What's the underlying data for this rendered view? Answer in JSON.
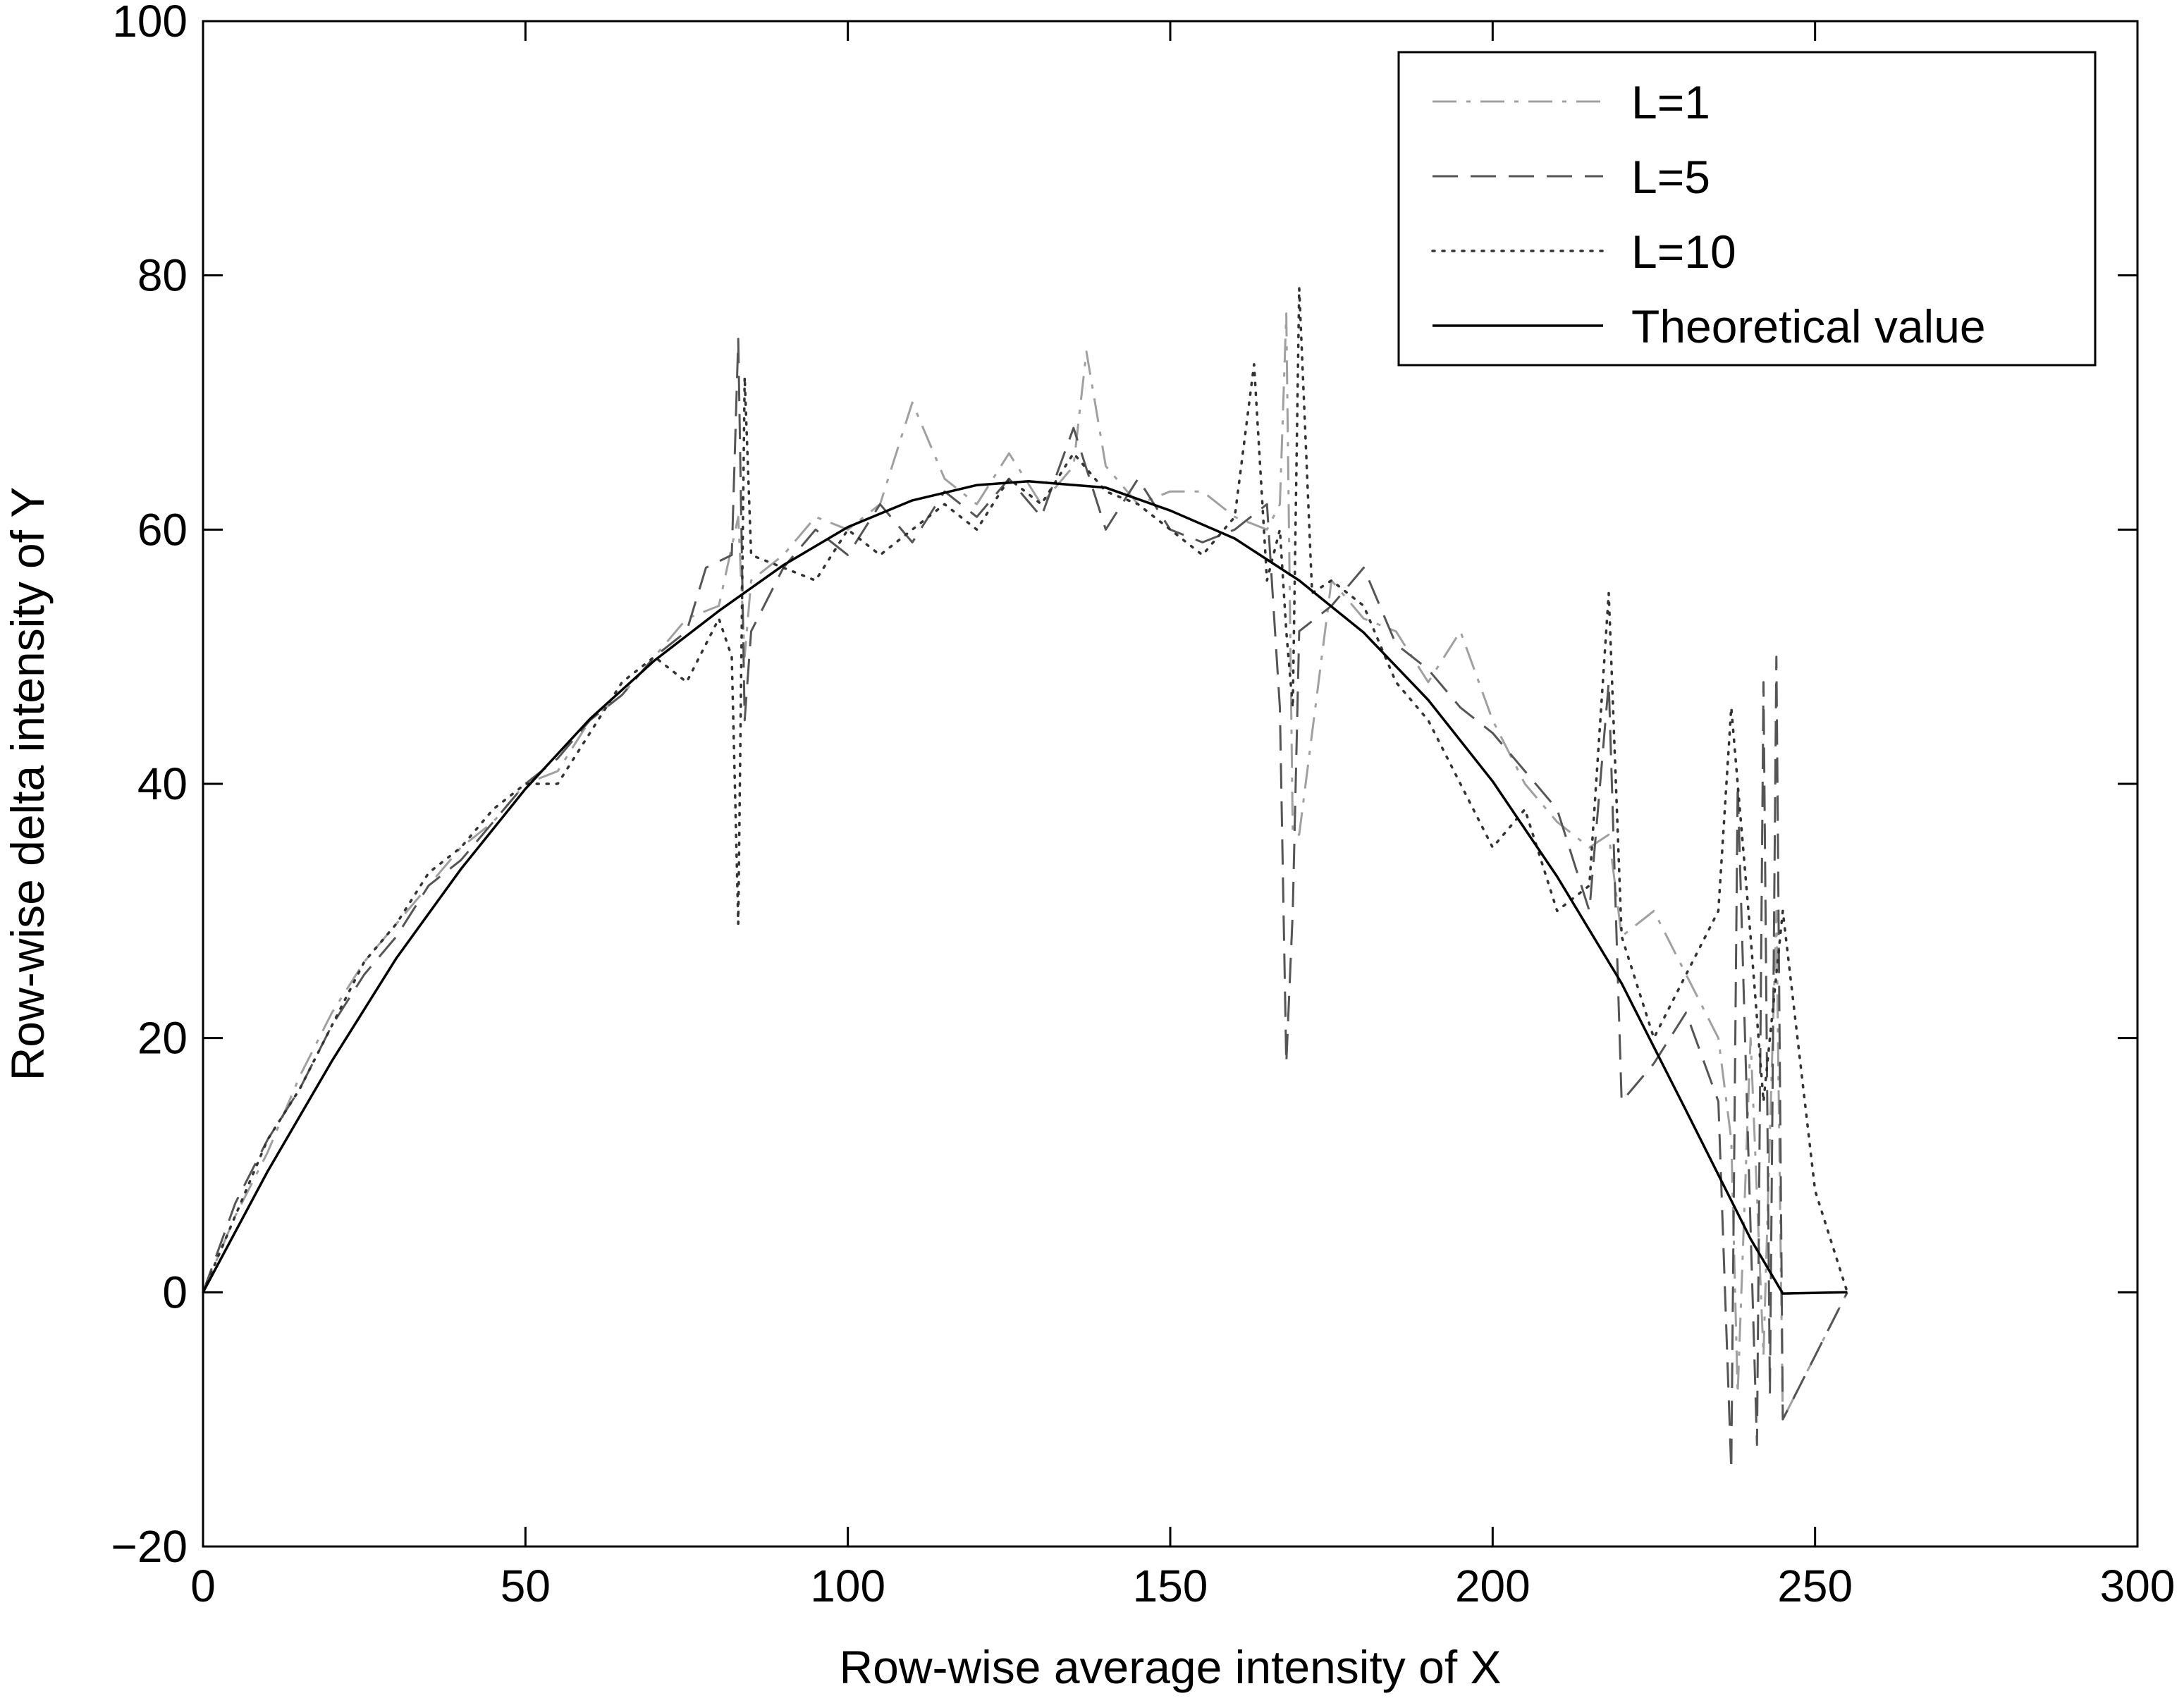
{
  "chart_data": {
    "type": "line",
    "title": "",
    "xlabel": "Row-wise average intensity of X",
    "ylabel": "Row-wise delta intensity of Y",
    "xlim": [
      0,
      300
    ],
    "ylim": [
      -20,
      100
    ],
    "xticks": [
      0,
      50,
      100,
      150,
      200,
      250,
      300
    ],
    "yticks": [
      -20,
      0,
      20,
      40,
      60,
      80,
      100
    ],
    "xtick_labels": [
      "0",
      "50",
      "100",
      "150",
      "200",
      "250",
      "300"
    ],
    "ytick_labels": [
      "−20",
      "0",
      "20",
      "40",
      "60",
      "80",
      "100"
    ],
    "grid": false,
    "legend_position": "top-right",
    "series": [
      {
        "name": "L=1",
        "style": "dash-dot",
        "color": "#a0a0a0",
        "x": [
          0,
          5,
          10,
          15,
          20,
          25,
          30,
          35,
          40,
          45,
          50,
          55,
          60,
          65,
          70,
          75,
          80,
          83,
          84,
          85,
          90,
          95,
          100,
          105,
          110,
          115,
          120,
          125,
          130,
          135,
          137,
          140,
          145,
          150,
          155,
          160,
          165,
          167,
          168,
          169,
          170,
          175,
          180,
          185,
          190,
          195,
          200,
          205,
          210,
          215,
          218,
          220,
          225,
          230,
          235,
          237,
          238,
          240,
          242,
          244,
          245,
          250,
          255
        ],
        "y": [
          0,
          6,
          11,
          17,
          22,
          26,
          29,
          32,
          35,
          37,
          40,
          41,
          45,
          47,
          50,
          53,
          54,
          61,
          50,
          56,
          58,
          61,
          60,
          62,
          70,
          64,
          62,
          66,
          62,
          65,
          74,
          65,
          62,
          63,
          63,
          61,
          60,
          62,
          77,
          36,
          36,
          56,
          53,
          52,
          48,
          52,
          45,
          40,
          37,
          35,
          36,
          28,
          30,
          25,
          20,
          12,
          -8,
          20,
          -5,
          30,
          -10,
          -5,
          0
        ]
      },
      {
        "name": "L=5",
        "style": "dashed",
        "color": "#555555",
        "x": [
          0,
          5,
          10,
          15,
          20,
          25,
          30,
          35,
          40,
          45,
          50,
          55,
          60,
          65,
          70,
          75,
          78,
          82,
          83,
          84,
          85,
          90,
          95,
          100,
          105,
          110,
          115,
          120,
          125,
          130,
          135,
          140,
          145,
          150,
          155,
          160,
          165,
          167,
          168,
          169,
          170,
          175,
          180,
          185,
          190,
          195,
          200,
          205,
          210,
          215,
          218,
          220,
          225,
          230,
          235,
          237,
          238,
          240,
          241,
          242,
          243,
          244,
          245,
          250,
          255
        ],
        "y": [
          0,
          7,
          12,
          16,
          21,
          25,
          28,
          32,
          34,
          37,
          40,
          42,
          45,
          47,
          50,
          52,
          57,
          58,
          75,
          45,
          52,
          57,
          60,
          58,
          62,
          59,
          63,
          61,
          64,
          61,
          68,
          60,
          64,
          60,
          59,
          60,
          62,
          46,
          18,
          30,
          52,
          54,
          57,
          51,
          49,
          46,
          44,
          41,
          38,
          30,
          48,
          15,
          18,
          22,
          15,
          -14,
          40,
          5,
          -12,
          48,
          -8,
          50,
          -10,
          -5,
          0
        ]
      },
      {
        "name": "L=10",
        "style": "dotted",
        "color": "#333333",
        "x": [
          0,
          5,
          10,
          15,
          20,
          25,
          30,
          35,
          40,
          45,
          50,
          55,
          60,
          65,
          70,
          75,
          80,
          82,
          83,
          84,
          85,
          90,
          95,
          100,
          105,
          110,
          115,
          120,
          125,
          130,
          135,
          140,
          145,
          150,
          155,
          160,
          163,
          165,
          167,
          168,
          169,
          170,
          172,
          175,
          180,
          185,
          190,
          195,
          200,
          205,
          210,
          215,
          218,
          220,
          225,
          230,
          235,
          237,
          240,
          242,
          245,
          250,
          255
        ],
        "y": [
          0,
          6,
          12,
          16,
          21,
          26,
          29,
          33,
          35,
          38,
          40,
          40,
          44,
          48,
          50,
          48,
          53,
          50,
          29,
          72,
          58,
          57,
          56,
          60,
          58,
          60,
          62,
          60,
          64,
          62,
          66,
          63,
          62,
          60,
          58,
          61,
          73,
          56,
          60,
          52,
          46,
          79,
          55,
          56,
          54,
          48,
          45,
          40,
          35,
          38,
          30,
          32,
          55,
          28,
          20,
          25,
          30,
          46,
          28,
          15,
          30,
          8,
          0
        ]
      },
      {
        "name": "Theoretical value",
        "style": "solid",
        "color": "#000000",
        "x": [
          0,
          10,
          20,
          30,
          40,
          50,
          60,
          70,
          80,
          90,
          100,
          110,
          120,
          128,
          140,
          150,
          160,
          170,
          180,
          190,
          200,
          210,
          220,
          230,
          240,
          245,
          255
        ],
        "y": [
          0,
          9.5,
          18.2,
          26.3,
          33.3,
          39.6,
          45.1,
          49.7,
          53.6,
          57.2,
          60.2,
          62.3,
          63.5,
          63.8,
          63.3,
          61.5,
          59.3,
          56.0,
          51.9,
          46.6,
          40.2,
          32.7,
          24.3,
          14.3,
          4.2,
          -0.1,
          0
        ]
      }
    ]
  }
}
